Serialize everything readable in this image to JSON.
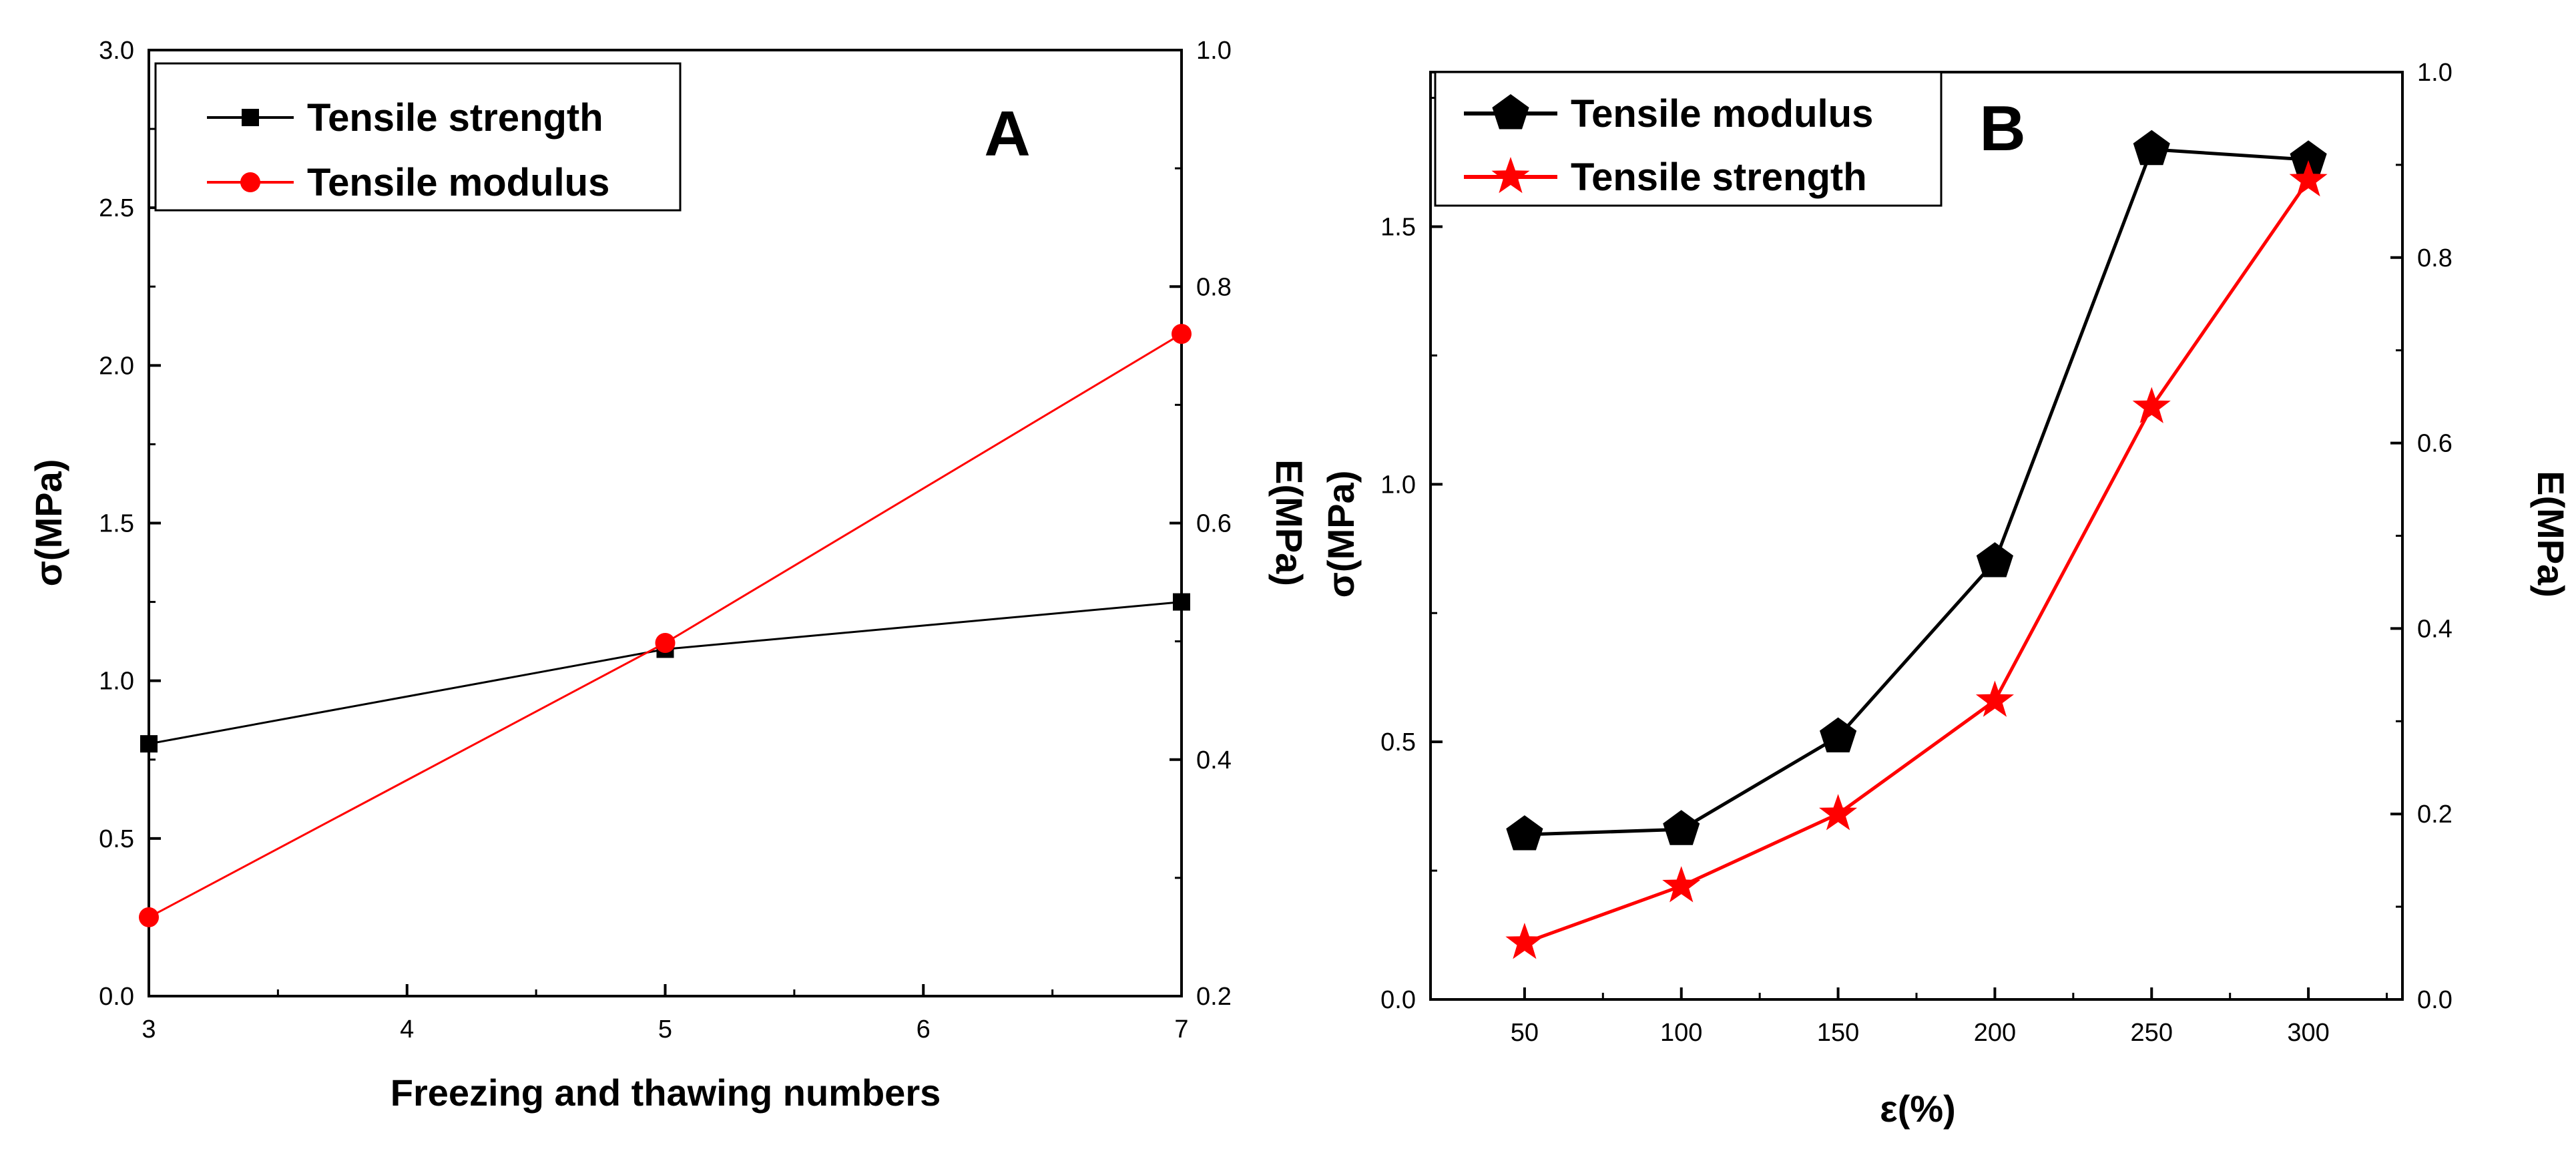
{
  "chart_data": [
    {
      "type": "line",
      "panel_label": "A",
      "xlabel": "Freezing and thawing numbers",
      "ylabel": "σ(MPa)",
      "ylabel_right": "E(MPa)",
      "xlim": [
        3,
        7
      ],
      "ylim": [
        0,
        3.0
      ],
      "ylim_right": [
        0.2,
        1.0
      ],
      "x_ticks": [
        "3",
        "4",
        "5",
        "6",
        "7"
      ],
      "y_ticks": [
        "0.0",
        "0.5",
        "1.0",
        "1.5",
        "2.0",
        "2.5",
        "3.0"
      ],
      "y_right_ticks": [
        "0.2",
        "0.4",
        "0.6",
        "0.8",
        "1.0"
      ],
      "legend_position": "top-left",
      "series": [
        {
          "name": "Tensile strength",
          "axis": "left",
          "color": "#000000",
          "marker": "square",
          "x": [
            3,
            5,
            7
          ],
          "values": [
            0.8,
            1.1,
            1.25
          ]
        },
        {
          "name": "Tensile modulus",
          "axis": "left",
          "color": "#ff0000",
          "marker": "circle",
          "x": [
            3,
            5,
            7
          ],
          "values": [
            0.25,
            1.12,
            2.1
          ]
        }
      ]
    },
    {
      "type": "line",
      "panel_label": "B",
      "xlabel": "ε(%)",
      "ylabel": "σ(MPa)",
      "ylabel_right": "E(MPa)",
      "xlim": [
        20,
        330
      ],
      "ylim": [
        0,
        1.8
      ],
      "ylim_right": [
        0,
        1.0
      ],
      "x_ticks": [
        "50",
        "100",
        "150",
        "200",
        "250",
        "300"
      ],
      "y_ticks": [
        "0.0",
        "0.5",
        "1.0",
        "1.5"
      ],
      "y_right_ticks": [
        "0.0",
        "0.2",
        "0.4",
        "0.6",
        "0.8",
        "1.0"
      ],
      "legend_position": "top-left",
      "series": [
        {
          "name": "Tensile modulus",
          "axis": "left",
          "color": "#000000",
          "marker": "pentagon",
          "x": [
            50,
            100,
            150,
            200,
            250,
            300
          ],
          "values": [
            0.32,
            0.33,
            0.51,
            0.85,
            1.65,
            1.63
          ]
        },
        {
          "name": "Tensile strength",
          "axis": "left",
          "color": "#ff0000",
          "marker": "star",
          "x": [
            50,
            100,
            150,
            200,
            250,
            300
          ],
          "values": [
            0.11,
            0.22,
            0.36,
            0.58,
            1.15,
            1.59
          ]
        }
      ]
    }
  ]
}
